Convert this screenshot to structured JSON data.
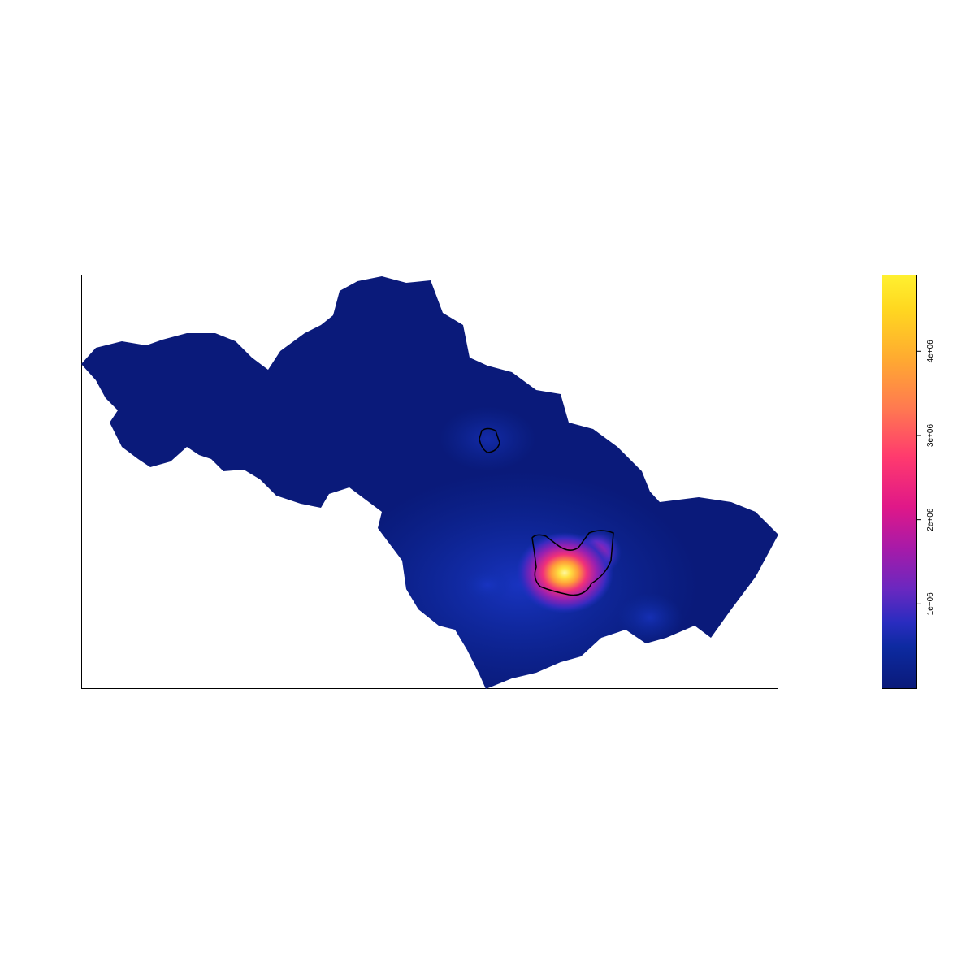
{
  "map": {
    "type": "raster-density-map",
    "palette": [
      "#0a1a7a",
      "#0d2fa8",
      "#1a30c8",
      "#5a2cc8",
      "#9a1cb0",
      "#d81a8a",
      "#ff4a6a",
      "#ff8a4a",
      "#ffc030",
      "#fff030"
    ],
    "background_region_color": "#0a1a7a",
    "contour_color": "#000000"
  },
  "colorbar": {
    "min": 0,
    "max": 4900000,
    "ticks": [
      {
        "value": 1000000,
        "label": "1e+06"
      },
      {
        "value": 2000000,
        "label": "2e+06"
      },
      {
        "value": 3000000,
        "label": "3e+06"
      },
      {
        "value": 4000000,
        "label": "4e+06"
      }
    ]
  }
}
